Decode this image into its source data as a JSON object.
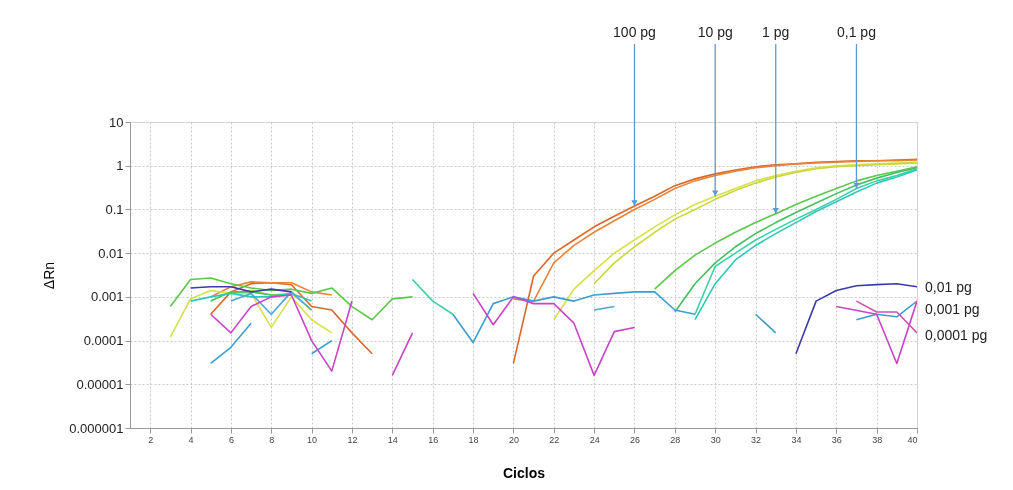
{
  "chart_data": {
    "type": "line",
    "xlabel": "Ciclos",
    "ylabel": "ΔRn",
    "log": "y",
    "grid": true,
    "legend": false,
    "marker": "none",
    "line_style": "solid",
    "xlim": [
      1,
      40
    ],
    "xticks": [
      2,
      4,
      6,
      8,
      10,
      12,
      14,
      16,
      18,
      20,
      22,
      24,
      26,
      28,
      30,
      32,
      34,
      36,
      38,
      40
    ],
    "ylim": [
      1e-06,
      10
    ],
    "yticks": [
      {
        "value": 1e-06,
        "label": "0.000001"
      },
      {
        "value": 1e-05,
        "label": "0.00001"
      },
      0.0001,
      0.001,
      0.01,
      0.1,
      1,
      10
    ],
    "series": [
      {
        "color": "#d9682b",
        "x": [
          5,
          6,
          7,
          8,
          9,
          10,
          11,
          12,
          13,
          14,
          20,
          21,
          22,
          23,
          24,
          25,
          26,
          27,
          28,
          29,
          30,
          31,
          32,
          33,
          34,
          35,
          36,
          37,
          38,
          39,
          40
        ],
        "values": [
          0.0004,
          0.0013,
          0.002,
          0.0021,
          0.0019,
          0.0006,
          0.0005,
          0.00015,
          5e-05,
          null,
          3e-05,
          0.003,
          0.01,
          0.02,
          0.04,
          0.07,
          0.12,
          0.2,
          0.35,
          0.5,
          0.65,
          0.8,
          0.95,
          1.05,
          1.1,
          1.2,
          1.25,
          1.3,
          1.3,
          1.35,
          1.4
        ]
      },
      {
        "color": "#e8843a",
        "x": [
          5,
          6,
          7,
          8,
          9,
          10,
          11,
          12,
          20,
          21,
          22,
          23,
          24,
          25,
          26,
          27,
          28,
          29,
          30,
          31,
          32,
          33,
          34,
          35,
          36,
          37,
          38,
          39,
          40
        ],
        "values": [
          0.001,
          0.0017,
          0.0022,
          0.0021,
          0.0021,
          0.0013,
          0.0011,
          null,
          0.0009,
          0.0008,
          0.006,
          0.015,
          0.03,
          0.055,
          0.1,
          0.17,
          0.3,
          0.45,
          0.6,
          0.75,
          0.9,
          1.0,
          1.1,
          1.15,
          1.2,
          1.25,
          1.3,
          1.3,
          1.35
        ]
      },
      {
        "color": "#d6e04a",
        "x": [
          3,
          4,
          5,
          6,
          7,
          8,
          9,
          10,
          11,
          12,
          22,
          23,
          24,
          25,
          26,
          27,
          28,
          29,
          30,
          31,
          32,
          33,
          34,
          35,
          36,
          37,
          38,
          39,
          40
        ],
        "values": [
          0.00012,
          0.0009,
          0.0014,
          0.0012,
          0.0012,
          0.0002,
          0.001,
          0.0003,
          0.00015,
          null,
          0.0003,
          0.0015,
          0.004,
          0.01,
          0.02,
          0.04,
          0.075,
          0.13,
          0.2,
          0.3,
          0.45,
          0.6,
          0.75,
          0.9,
          1.0,
          1.05,
          1.1,
          1.15,
          1.2
        ]
      },
      {
        "color": "#c8d83c",
        "x": [
          6,
          7,
          8,
          9,
          10,
          11,
          24,
          25,
          26,
          27,
          28,
          29,
          30,
          31,
          32,
          33,
          34,
          35,
          36,
          37,
          38,
          39,
          40
        ],
        "values": [
          0.0012,
          0.0014,
          0.0011,
          0.0012,
          0.0005,
          null,
          0.002,
          0.006,
          0.014,
          0.03,
          0.06,
          0.1,
          0.17,
          0.27,
          0.4,
          0.55,
          0.7,
          0.85,
          0.95,
          1.0,
          1.05,
          1.1,
          1.15
        ]
      },
      {
        "color": "#5cc84a",
        "x": [
          3,
          4,
          5,
          6,
          7,
          8,
          9,
          10,
          11,
          12,
          13,
          14,
          15,
          16,
          27,
          28,
          29,
          30,
          31,
          32,
          33,
          34,
          35,
          36,
          37,
          38,
          39,
          40
        ],
        "values": [
          0.0006,
          0.0025,
          0.0027,
          0.002,
          0.0016,
          0.0014,
          0.0015,
          0.0012,
          0.0016,
          0.0006,
          0.0003,
          0.0009,
          0.001,
          null,
          0.0015,
          0.004,
          0.009,
          0.017,
          0.03,
          0.05,
          0.08,
          0.13,
          0.2,
          0.3,
          0.45,
          0.6,
          0.75,
          0.95
        ]
      },
      {
        "color": "#44c060",
        "x": [
          5,
          6,
          7,
          8,
          9,
          10,
          28,
          29,
          30,
          31,
          32,
          33,
          34,
          35,
          36,
          37,
          38,
          39,
          40
        ],
        "values": [
          0.0008,
          0.0013,
          0.0013,
          0.0011,
          0.0011,
          null,
          0.00045,
          0.002,
          0.006,
          0.014,
          0.028,
          0.05,
          0.085,
          0.14,
          0.23,
          0.36,
          0.52,
          0.7,
          0.9
        ]
      },
      {
        "color": "#3cd0a8",
        "x": [
          15,
          16,
          17,
          18,
          29,
          30,
          31,
          32,
          33,
          34,
          35,
          36,
          37,
          38,
          39,
          40
        ],
        "values": [
          0.0025,
          0.0008,
          0.0004,
          null,
          0.0004,
          0.005,
          0.01,
          0.02,
          0.035,
          0.06,
          0.1,
          0.17,
          0.3,
          0.45,
          0.6,
          0.85
        ]
      },
      {
        "color": "#2ec8b8",
        "x": [
          4,
          5,
          6,
          7,
          8,
          9,
          10,
          11,
          29,
          30,
          31,
          32,
          33,
          34,
          35,
          36,
          37,
          38,
          39,
          40
        ],
        "values": [
          0.0008,
          0.001,
          0.0012,
          0.001,
          0.001,
          0.0012,
          0.0008,
          null,
          0.0003,
          0.002,
          0.007,
          0.015,
          0.028,
          0.05,
          0.09,
          0.15,
          0.25,
          0.4,
          0.55,
          0.8
        ]
      },
      {
        "color": "#3a9fd0",
        "x": [
          5,
          6,
          7,
          8,
          10,
          11,
          12,
          17,
          18,
          19,
          20,
          21,
          22,
          23,
          24,
          25,
          26,
          27,
          28,
          29,
          30,
          32,
          33,
          34,
          37,
          38,
          39,
          40
        ],
        "values": [
          3e-05,
          7e-05,
          0.00025,
          null,
          5e-05,
          0.0001,
          null,
          0.0004,
          9e-05,
          0.0007,
          0.001,
          0.0008,
          0.001,
          0.0008,
          0.0011,
          0.0012,
          0.0013,
          0.0013,
          0.0005,
          0.0004,
          null,
          0.0004,
          0.00015,
          null,
          0.0003,
          0.0004,
          0.00035,
          0.0008
        ]
      },
      {
        "color": "#4aa8d8",
        "x": [
          6,
          7,
          8,
          9,
          10,
          11,
          24,
          25
        ],
        "values": [
          0.0008,
          0.0012,
          0.0004,
          0.0013,
          0.0005,
          null,
          0.0005,
          0.0006
        ]
      },
      {
        "color": "#3c3ca8",
        "x": [
          4,
          5,
          6,
          7,
          8,
          9,
          10,
          34,
          35,
          36,
          37,
          38,
          39,
          40
        ],
        "values": [
          0.0016,
          0.0017,
          0.0017,
          0.0013,
          0.0015,
          0.0013,
          null,
          5e-05,
          0.0008,
          0.0014,
          0.0018,
          0.0019,
          0.002,
          0.0017
        ]
      },
      {
        "color": "#c844c8",
        "x": [
          5,
          6,
          7,
          8,
          9,
          10,
          11,
          12,
          13,
          14,
          15,
          16,
          18,
          19,
          20,
          21,
          22,
          23,
          24,
          25,
          26,
          27,
          36,
          38,
          39,
          40
        ],
        "values": [
          0.0004,
          0.00015,
          0.0006,
          0.001,
          0.0011,
          0.0001,
          2e-05,
          0.0008,
          null,
          1.6e-05,
          0.00015,
          null,
          0.0012,
          0.00023,
          0.001,
          0.0007,
          0.0007,
          0.00025,
          1.6e-05,
          0.00016,
          0.0002,
          null,
          0.0006,
          0.0004,
          3e-05,
          0.0008
        ]
      },
      {
        "color": "#d050b0",
        "x": [
          37,
          38,
          39,
          40
        ],
        "values": [
          0.0008,
          0.00045,
          0.00045,
          0.00015
        ]
      }
    ],
    "annotations": [
      {
        "text": "100 pg",
        "x": 26,
        "y": 0.12
      },
      {
        "text": "10 pg",
        "x": 30,
        "y": 0.2
      },
      {
        "text": "1 pg",
        "x": 33,
        "y": 0.08
      },
      {
        "text": "0,1 pg",
        "x": 37,
        "y": 0.3
      },
      {
        "text": "0,01 pg",
        "x": 40,
        "y": 0.0016
      },
      {
        "text": "0,001 pg",
        "x": 40,
        "y": 0.0005
      },
      {
        "text": "0,0001 pg",
        "x": 40,
        "y": 0.00013
      }
    ]
  }
}
